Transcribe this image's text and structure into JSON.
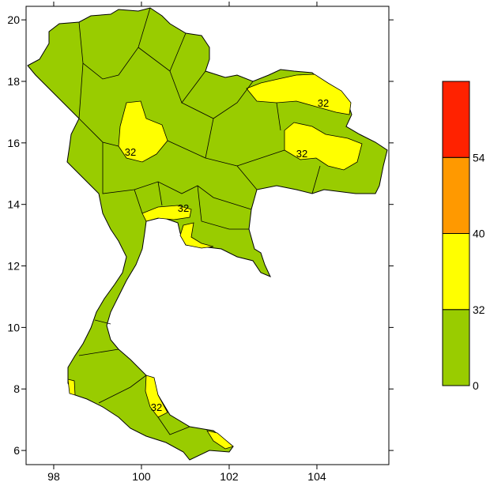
{
  "map": {
    "xlim": [
      97.37,
      105.64
    ],
    "ylim": [
      5.54,
      20.44
    ],
    "xticks": [
      98,
      100,
      102,
      104
    ],
    "yticks": [
      6,
      8,
      10,
      12,
      14,
      16,
      18,
      20
    ],
    "contour_labels": [
      "32",
      "32",
      "32",
      "32",
      "32"
    ]
  },
  "legend": {
    "levels": [
      0,
      32,
      40,
      54
    ],
    "colors": [
      "#99cc00",
      "#ffff00",
      "#ff9900",
      "#ff2200"
    ]
  }
}
